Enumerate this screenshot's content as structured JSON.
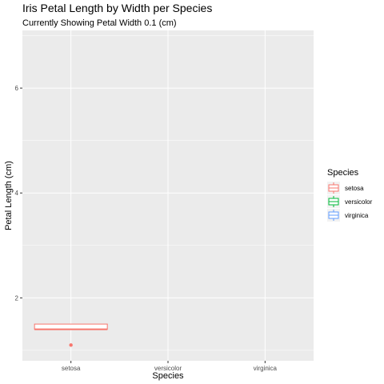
{
  "chart_data": {
    "type": "boxplot",
    "title": "Iris Petal Length by Width per Species",
    "subtitle": "Currently Showing Petal Width 0.1 (cm)",
    "xlabel": "Species",
    "ylabel": "Petal Length (cm)",
    "categories": [
      "setosa",
      "versicolor",
      "virginica"
    ],
    "ylim": [
      0.8,
      7.1
    ],
    "yticks": [
      2,
      4,
      6
    ],
    "boxes": [
      {
        "category": "setosa",
        "q1": 1.4,
        "median": 1.4,
        "q3": 1.5,
        "whisker_low": 1.4,
        "whisker_high": 1.5,
        "outliers": [
          1.1
        ],
        "color": "#F8766D"
      }
    ],
    "legend": {
      "title": "Species",
      "placement": "right",
      "items": [
        {
          "label": "setosa",
          "color": "#F8766D"
        },
        {
          "label": "versicolor",
          "color": "#00BA38"
        },
        {
          "label": "virginica",
          "color": "#619CFF"
        }
      ]
    },
    "grid": true,
    "panel_background": "#EBEBEB"
  }
}
